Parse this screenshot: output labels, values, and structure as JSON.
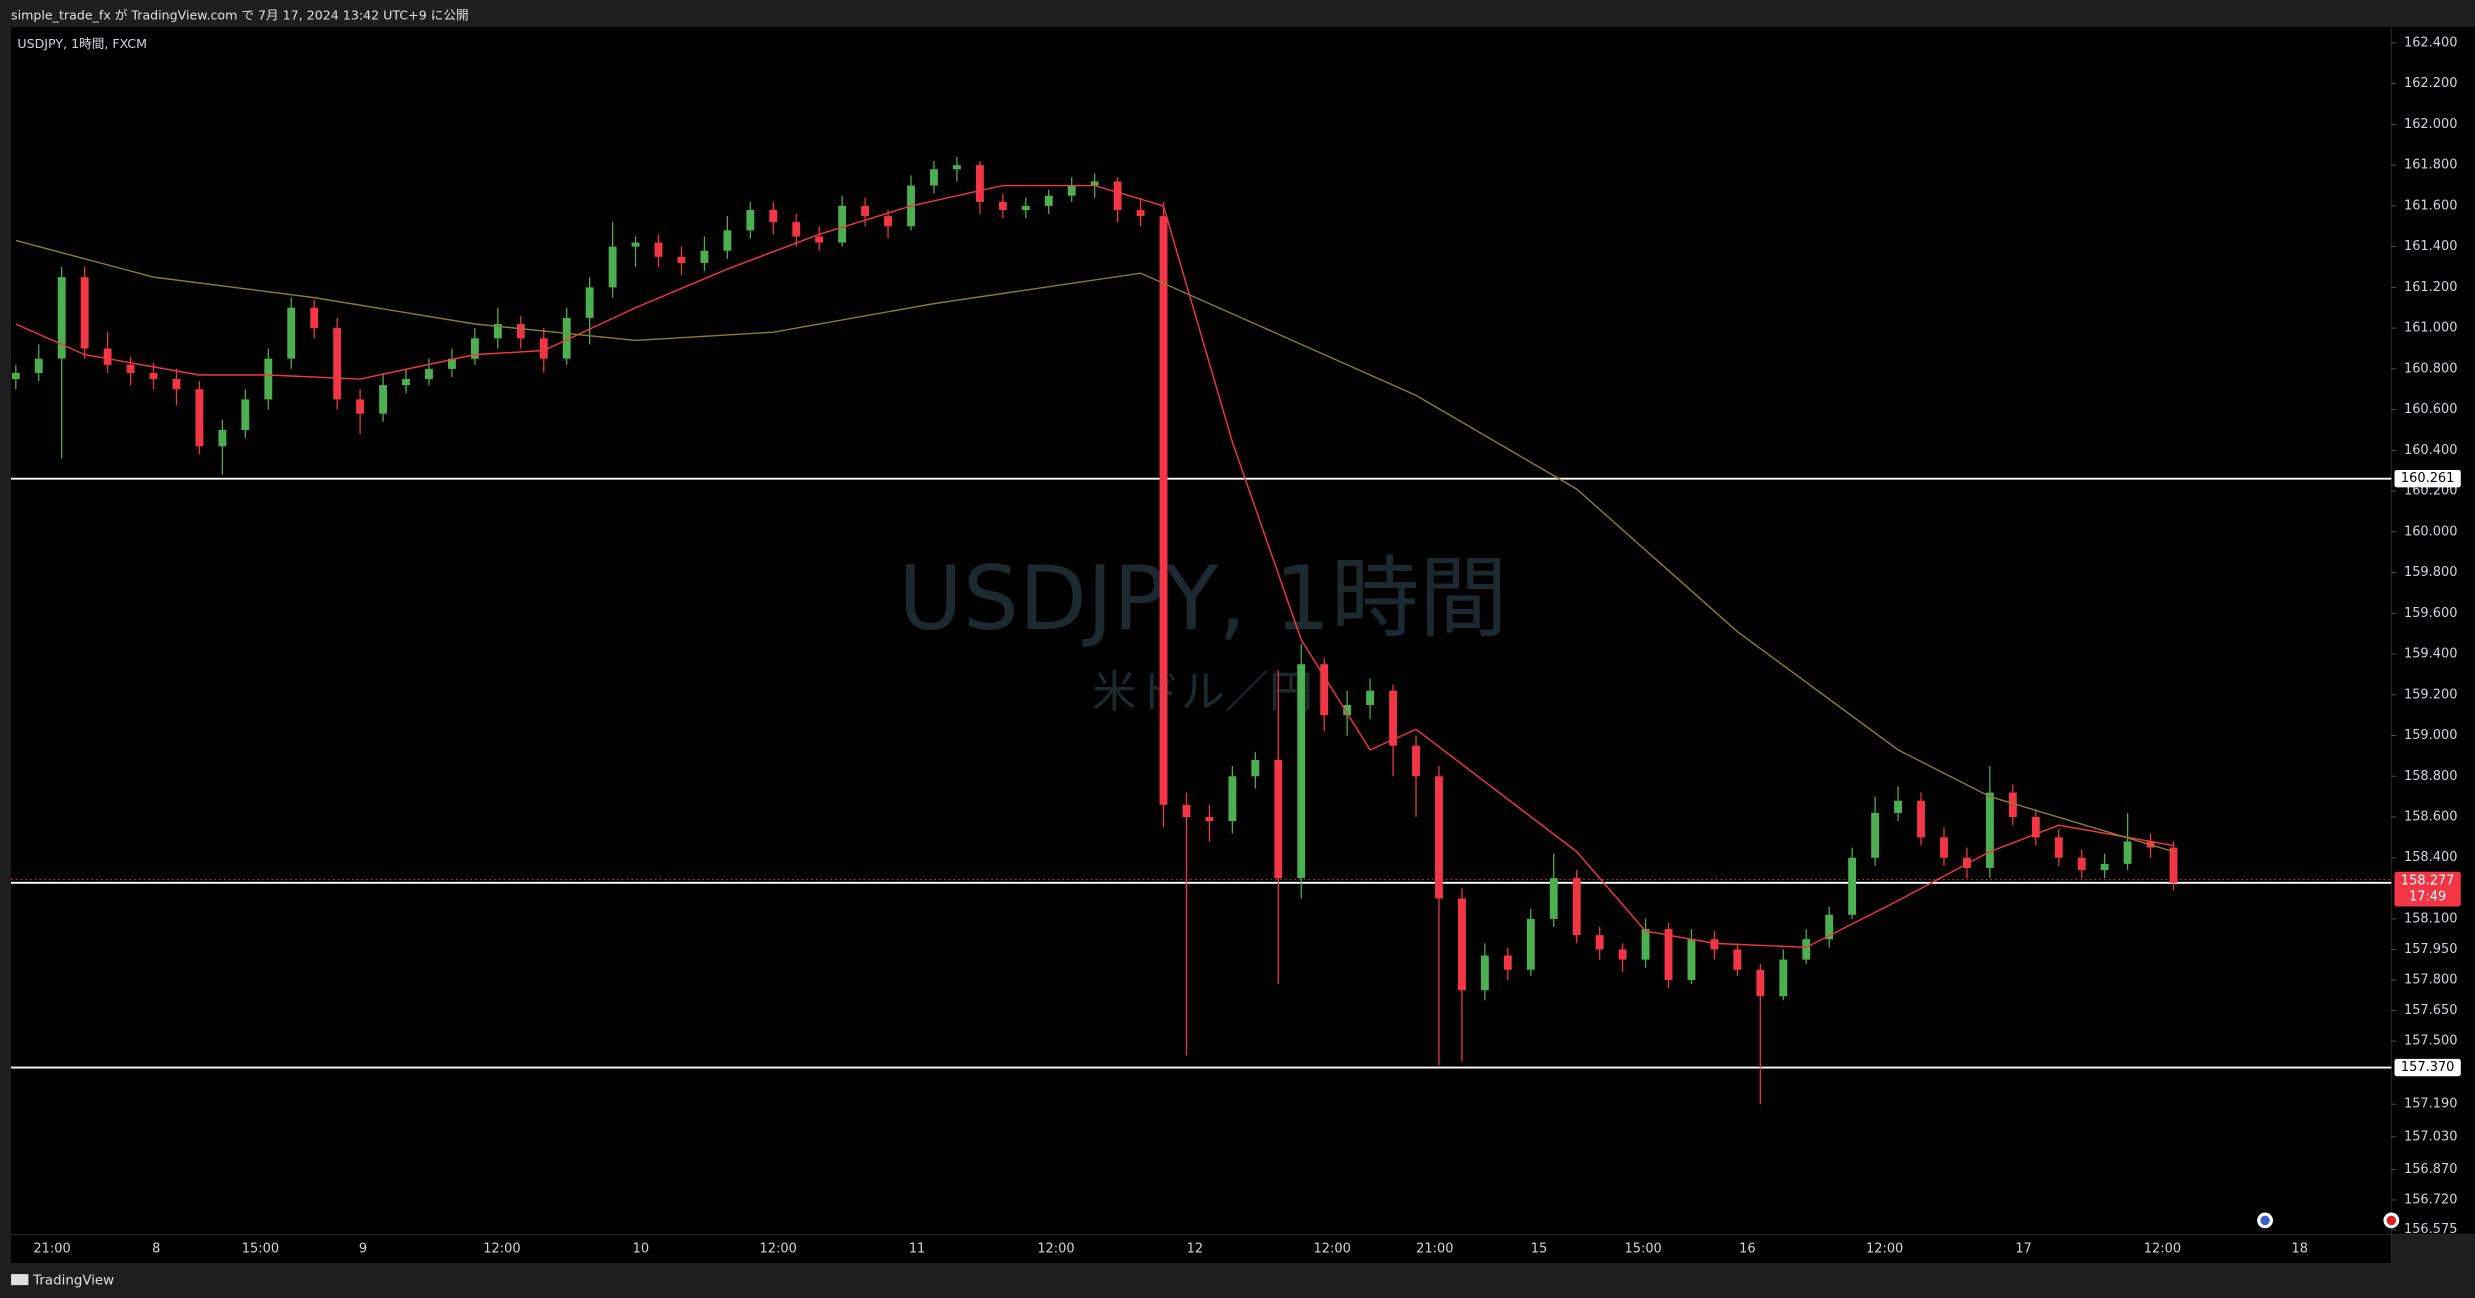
{
  "header": {
    "publisher": "simple_trade_fx が TradingView.com で 7月 17, 2024 13:42 UTC+9 に公開"
  },
  "footer": {
    "brand": "TradingView"
  },
  "chart_data": {
    "type": "candlestick",
    "symbol": "USDJPY, 1時間, FXCM",
    "watermark": "USDJPY, 1時間",
    "watermark_subtitle": "米ドル／円",
    "x_labels": [
      "21:00",
      "8",
      "15:00",
      "9",
      "12:00",
      "10",
      "12:00",
      "11",
      "12:00",
      "12",
      "12:00",
      "21:00",
      "15",
      "15:00",
      "16",
      "12:00",
      "17",
      "12:00",
      "18"
    ],
    "colors": {
      "up": "#4caf50",
      "down": "#f23645"
    },
    "candles": {
      "open": [
        160.75,
        160.78,
        160.85,
        161.25,
        160.9,
        160.82,
        160.78,
        160.75,
        160.7,
        160.42,
        160.5,
        160.65,
        160.85,
        161.1,
        161.0,
        160.65,
        160.58,
        160.72,
        160.75,
        160.8,
        160.85,
        160.95,
        161.02,
        160.95,
        160.85,
        161.05,
        161.2,
        161.4,
        161.42,
        161.35,
        161.32,
        161.38,
        161.48,
        161.58,
        161.52,
        161.45,
        161.42,
        161.6,
        161.55,
        161.5,
        161.7,
        161.78,
        161.8,
        161.62,
        161.58,
        161.6,
        161.65,
        161.7,
        161.72,
        161.58,
        161.55,
        158.66,
        158.6,
        158.58,
        158.8,
        158.88,
        158.3,
        159.35,
        159.1,
        159.15,
        159.22,
        158.95,
        158.8,
        158.2,
        157.75,
        157.92,
        157.85,
        158.1,
        158.3,
        158.02,
        157.95,
        157.9,
        158.05,
        157.8,
        158.0,
        157.95,
        157.85,
        157.72,
        157.9,
        158.0,
        158.12,
        158.4,
        158.62,
        158.68,
        158.5,
        158.4,
        158.35,
        158.72,
        158.6,
        158.5,
        158.4,
        158.34,
        158.37,
        158.48,
        158.45
      ],
      "high": [
        160.82,
        160.92,
        161.3,
        161.3,
        160.98,
        160.86,
        160.83,
        160.8,
        160.74,
        160.55,
        160.7,
        160.9,
        161.15,
        161.14,
        161.05,
        160.7,
        160.78,
        160.8,
        160.85,
        160.9,
        161.0,
        161.1,
        161.06,
        161.0,
        161.1,
        161.25,
        161.52,
        161.45,
        161.46,
        161.4,
        161.45,
        161.55,
        161.62,
        161.62,
        161.56,
        161.5,
        161.65,
        161.64,
        161.58,
        161.75,
        161.82,
        161.84,
        161.82,
        161.66,
        161.64,
        161.68,
        161.74,
        161.76,
        161.74,
        161.64,
        161.62,
        158.72,
        158.66,
        158.85,
        158.92,
        159.32,
        159.45,
        159.38,
        159.22,
        159.28,
        159.25,
        159.0,
        158.85,
        158.25,
        157.98,
        157.96,
        158.15,
        158.42,
        158.34,
        158.06,
        157.98,
        158.1,
        158.08,
        158.05,
        158.04,
        157.98,
        157.88,
        157.95,
        158.05,
        158.16,
        158.45,
        158.7,
        158.75,
        158.72,
        158.55,
        158.45,
        158.85,
        158.76,
        158.64,
        158.54,
        158.44,
        158.42,
        158.62,
        158.52,
        158.48
      ],
      "low": [
        160.7,
        160.74,
        160.36,
        160.85,
        160.78,
        160.72,
        160.7,
        160.62,
        160.38,
        160.28,
        160.46,
        160.6,
        160.8,
        160.95,
        160.6,
        160.48,
        160.54,
        160.68,
        160.72,
        160.76,
        160.82,
        160.9,
        160.9,
        160.78,
        160.82,
        160.92,
        161.15,
        161.3,
        161.3,
        161.26,
        161.28,
        161.34,
        161.44,
        161.46,
        161.4,
        161.38,
        161.4,
        161.5,
        161.44,
        161.48,
        161.66,
        161.72,
        161.56,
        161.54,
        161.54,
        161.56,
        161.62,
        161.64,
        161.52,
        161.5,
        158.55,
        157.43,
        158.48,
        158.52,
        158.74,
        157.78,
        158.2,
        159.02,
        159.0,
        159.08,
        158.8,
        158.6,
        157.38,
        157.4,
        157.7,
        157.8,
        157.82,
        158.06,
        157.98,
        157.9,
        157.84,
        157.86,
        157.76,
        157.78,
        157.9,
        157.82,
        157.19,
        157.7,
        157.88,
        157.96,
        158.1,
        158.36,
        158.58,
        158.46,
        158.36,
        158.3,
        158.3,
        158.56,
        158.46,
        158.36,
        158.3,
        158.3,
        158.34,
        158.4,
        158.24
      ],
      "close": [
        160.78,
        160.85,
        161.25,
        160.9,
        160.82,
        160.78,
        160.75,
        160.7,
        160.42,
        160.5,
        160.65,
        160.85,
        161.1,
        161.0,
        160.65,
        160.58,
        160.72,
        160.75,
        160.8,
        160.85,
        160.95,
        161.02,
        160.95,
        160.85,
        161.05,
        161.2,
        161.4,
        161.42,
        161.35,
        161.32,
        161.38,
        161.48,
        161.58,
        161.52,
        161.45,
        161.42,
        161.6,
        161.55,
        161.5,
        161.7,
        161.78,
        161.8,
        161.62,
        161.58,
        161.6,
        161.65,
        161.7,
        161.72,
        161.58,
        161.55,
        158.66,
        158.6,
        158.58,
        158.8,
        158.88,
        158.3,
        159.35,
        159.1,
        159.15,
        159.22,
        158.95,
        158.8,
        158.2,
        157.75,
        157.92,
        157.85,
        158.1,
        158.3,
        158.02,
        157.95,
        157.9,
        158.05,
        157.8,
        158.0,
        157.95,
        157.85,
        157.72,
        157.9,
        158.0,
        158.12,
        158.4,
        158.62,
        158.68,
        158.5,
        158.4,
        158.35,
        158.72,
        158.6,
        158.5,
        158.4,
        158.34,
        158.37,
        158.48,
        158.45,
        158.277
      ]
    },
    "moving_averages": [
      {
        "color": "#f23645",
        "x": [
          0,
          3,
          8,
          11,
          15,
          20,
          23,
          27,
          31,
          35,
          39,
          43,
          47,
          50,
          53,
          56,
          59,
          61,
          68,
          71,
          74,
          78,
          82,
          86,
          89,
          94
        ],
        "values": [
          161.02,
          160.87,
          160.77,
          160.77,
          160.75,
          160.87,
          160.89,
          161.1,
          161.29,
          161.46,
          161.6,
          161.7,
          161.7,
          161.6,
          160.44,
          159.47,
          158.93,
          159.03,
          158.43,
          158.04,
          157.98,
          157.96,
          158.19,
          158.43,
          158.56,
          158.46
        ]
      },
      {
        "color": "#8b7d2b",
        "x": [
          0,
          6,
          13,
          20,
          27,
          33,
          40,
          49,
          54,
          61,
          68,
          75,
          82,
          86,
          94
        ],
        "values": [
          161.43,
          161.25,
          161.15,
          161.02,
          160.94,
          160.98,
          161.12,
          161.27,
          161.02,
          160.67,
          160.21,
          159.51,
          158.93,
          158.7,
          158.43
        ]
      }
    ],
    "horizontal_lines": [
      {
        "value": 160.261,
        "label": "160.261"
      },
      {
        "value": 157.37,
        "label": "157.370"
      }
    ],
    "current_price": {
      "value": 158.277,
      "label": "158.277",
      "countdown": "17:49"
    },
    "ylim": [
      156.55,
      162.47
    ],
    "yticks": [
      {
        "value": 162.4,
        "label": "162.400"
      },
      {
        "value": 162.2,
        "label": "162.200"
      },
      {
        "value": 162,
        "label": "162.000"
      },
      {
        "value": 161.8,
        "label": "161.800"
      },
      {
        "value": 161.6,
        "label": "161.600"
      },
      {
        "value": 161.4,
        "label": "161.400"
      },
      {
        "value": 161.2,
        "label": "161.200"
      },
      {
        "value": 161,
        "label": "161.000"
      },
      {
        "value": 160.8,
        "label": "160.800"
      },
      {
        "value": 160.6,
        "label": "160.600"
      },
      {
        "value": 160.4,
        "label": "160.400"
      },
      {
        "value": 160.2,
        "label": "160.200"
      },
      {
        "value": 160,
        "label": "160.000"
      },
      {
        "value": 159.8,
        "label": "159.800"
      },
      {
        "value": 159.6,
        "label": "159.600"
      },
      {
        "value": 159.4,
        "label": "159.400"
      },
      {
        "value": 159.2,
        "label": "159.200"
      },
      {
        "value": 159,
        "label": "159.000"
      },
      {
        "value": 158.8,
        "label": "158.800"
      },
      {
        "value": 158.6,
        "label": "158.600"
      },
      {
        "value": 158.4,
        "label": "158.400"
      },
      {
        "value": 158.1,
        "label": "158.100"
      },
      {
        "value": 157.95,
        "label": "157.950"
      },
      {
        "value": 157.8,
        "label": "157.800"
      },
      {
        "value": 157.65,
        "label": "157.650"
      },
      {
        "value": 157.5,
        "label": "157.500"
      },
      {
        "value": 157.19,
        "label": "157.190"
      },
      {
        "value": 157.03,
        "label": "157.030"
      },
      {
        "value": 156.87,
        "label": "156.870"
      },
      {
        "value": 156.72,
        "label": "156.720"
      },
      {
        "value": 156.575,
        "label": "156.575"
      }
    ]
  }
}
